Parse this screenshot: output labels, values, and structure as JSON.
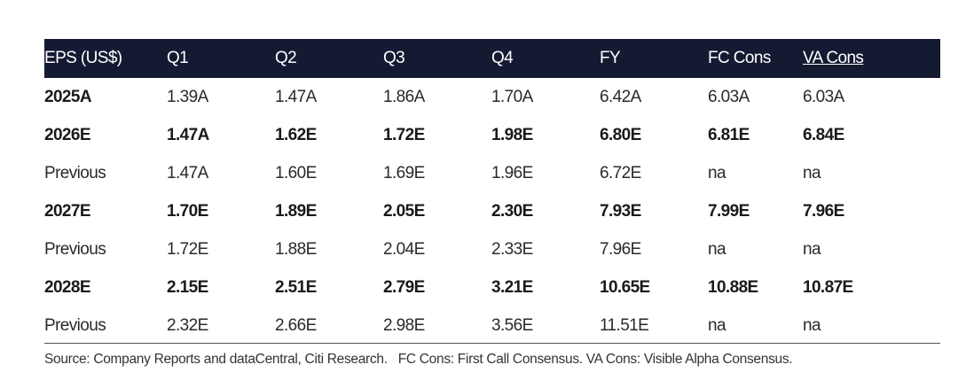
{
  "table": {
    "header": [
      "EPS (US$)",
      "Q1",
      "Q2",
      "Q3",
      "Q4",
      "FY",
      "FC Cons",
      "VA Cons"
    ],
    "rows": [
      {
        "label": "2025A",
        "label_bold": true,
        "cells_bold": false,
        "cells": [
          "1.39A",
          "1.47A",
          "1.86A",
          "1.70A",
          "6.42A",
          "6.03A",
          "6.03A"
        ]
      },
      {
        "label": "2026E",
        "label_bold": true,
        "cells_bold": true,
        "cells": [
          "1.47A",
          "1.62E",
          "1.72E",
          "1.98E",
          "6.80E",
          "6.81E",
          "6.84E"
        ]
      },
      {
        "label": "Previous",
        "label_bold": false,
        "cells_bold": false,
        "cells": [
          "1.47A",
          "1.60E",
          "1.69E",
          "1.96E",
          "6.72E",
          "na",
          "na"
        ]
      },
      {
        "label": "2027E",
        "label_bold": true,
        "cells_bold": true,
        "cells": [
          "1.70E",
          "1.89E",
          "2.05E",
          "2.30E",
          "7.93E",
          "7.99E",
          "7.96E"
        ]
      },
      {
        "label": "Previous",
        "label_bold": false,
        "cells_bold": false,
        "cells": [
          "1.72E",
          "1.88E",
          "2.04E",
          "2.33E",
          "7.96E",
          "na",
          "na"
        ]
      },
      {
        "label": "2028E",
        "label_bold": true,
        "cells_bold": true,
        "cells": [
          "2.15E",
          "2.51E",
          "2.79E",
          "3.21E",
          "10.65E",
          "10.88E",
          "10.87E"
        ]
      },
      {
        "label": "Previous",
        "label_bold": false,
        "cells_bold": false,
        "cells": [
          "2.32E",
          "2.66E",
          "2.98E",
          "3.56E",
          "11.51E",
          "na",
          "na"
        ]
      }
    ],
    "source": "Source: Company Reports and dataCentral, Citi Research.   FC Cons: First Call Consensus. VA Cons: Visible Alpha Consensus."
  }
}
